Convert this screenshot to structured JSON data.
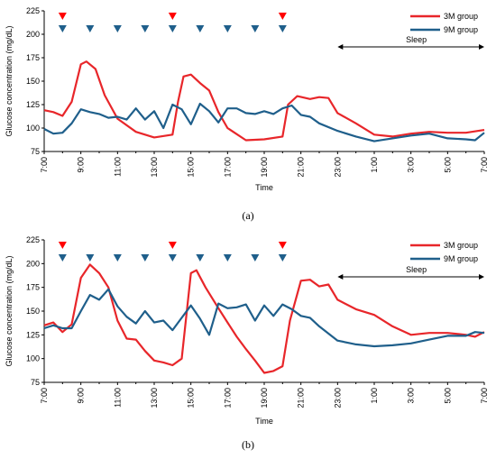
{
  "chart_data": [
    {
      "type": "line",
      "panel_label": "(a)",
      "xlabel": "Time",
      "ylabel": "Glucose concentration (mg/dL)",
      "ylim": [
        75,
        225
      ],
      "ytick_labels": [
        "75",
        "100",
        "125",
        "150",
        "175",
        "200",
        "225"
      ],
      "xtick_labels": [
        "7:00",
        "9:00",
        "11:00",
        "13:00",
        "15:00",
        "17:00",
        "19:00",
        "21:00",
        "23:00",
        "1:00",
        "3:00",
        "5:00",
        "7:00"
      ],
      "grid": false,
      "legend_position": "top-right",
      "sleep": {
        "label": "Sleep",
        "start_hour": 23,
        "end_hour": 31
      },
      "meal_markers": {
        "3M group": {
          "hours": [
            8,
            14,
            20
          ],
          "color": "#ff0000"
        },
        "9M group": {
          "hours": [
            8,
            9.5,
            11,
            12.5,
            14,
            15.5,
            17,
            18.5,
            20
          ],
          "color": "#1f5f8b"
        }
      },
      "series": [
        {
          "name": "3M group",
          "color": "#e8262a",
          "points": [
            [
              7,
              119
            ],
            [
              7.5,
              117
            ],
            [
              8,
              113
            ],
            [
              8.5,
              128
            ],
            [
              9,
              168
            ],
            [
              9.3,
              171
            ],
            [
              9.8,
              163
            ],
            [
              10.3,
              135
            ],
            [
              11,
              110
            ],
            [
              12,
              96
            ],
            [
              13,
              90
            ],
            [
              14,
              93
            ],
            [
              14.3,
              128
            ],
            [
              14.6,
              155
            ],
            [
              15,
              157
            ],
            [
              15.5,
              148
            ],
            [
              16,
              140
            ],
            [
              16.5,
              117
            ],
            [
              17,
              100
            ],
            [
              18,
              87
            ],
            [
              19,
              88
            ],
            [
              20,
              91
            ],
            [
              20.3,
              125
            ],
            [
              20.8,
              134
            ],
            [
              21.5,
              131
            ],
            [
              22,
              133
            ],
            [
              22.5,
              132
            ],
            [
              23,
              116
            ],
            [
              24,
              105
            ],
            [
              25,
              93
            ],
            [
              26,
              91
            ],
            [
              27,
              94
            ],
            [
              28,
              96
            ],
            [
              29,
              95
            ],
            [
              30,
              95
            ],
            [
              31,
              98
            ]
          ]
        },
        {
          "name": "9M group",
          "color": "#1f5f8b",
          "points": [
            [
              7,
              99
            ],
            [
              7.5,
              94
            ],
            [
              8,
              95
            ],
            [
              8.5,
              105
            ],
            [
              9,
              120
            ],
            [
              9.5,
              117
            ],
            [
              10,
              115
            ],
            [
              10.5,
              111
            ],
            [
              11,
              112
            ],
            [
              11.5,
              109
            ],
            [
              12,
              121
            ],
            [
              12.5,
              109
            ],
            [
              13,
              118
            ],
            [
              13.5,
              100
            ],
            [
              14,
              125
            ],
            [
              14.5,
              120
            ],
            [
              15,
              104
            ],
            [
              15.5,
              126
            ],
            [
              16,
              118
            ],
            [
              16.5,
              106
            ],
            [
              17,
              121
            ],
            [
              17.5,
              121
            ],
            [
              18,
              116
            ],
            [
              18.5,
              115
            ],
            [
              19,
              118
            ],
            [
              19.5,
              115
            ],
            [
              20,
              121
            ],
            [
              20.5,
              124
            ],
            [
              21,
              114
            ],
            [
              21.5,
              112
            ],
            [
              22,
              105
            ],
            [
              23,
              97
            ],
            [
              24,
              91
            ],
            [
              25,
              86
            ],
            [
              26,
              89
            ],
            [
              27,
              92
            ],
            [
              28,
              94
            ],
            [
              29,
              89
            ],
            [
              30,
              88
            ],
            [
              30.5,
              87
            ],
            [
              31,
              95
            ]
          ]
        }
      ]
    },
    {
      "type": "line",
      "panel_label": "(b)",
      "xlabel": "Time",
      "ylabel": "Glucose concentration (mg/dL)",
      "ylim": [
        75,
        225
      ],
      "ytick_labels": [
        "75",
        "100",
        "125",
        "150",
        "175",
        "200",
        "225"
      ],
      "xtick_labels": [
        "7:00",
        "9:00",
        "11:00",
        "13:00",
        "15:00",
        "17:00",
        "19:00",
        "21:00",
        "23:00",
        "1:00",
        "3:00",
        "5:00",
        "7:00"
      ],
      "grid": false,
      "legend_position": "top-right",
      "sleep": {
        "label": "Sleep",
        "start_hour": 23,
        "end_hour": 31
      },
      "meal_markers": {
        "3M group": {
          "hours": [
            8,
            14,
            20
          ],
          "color": "#ff0000"
        },
        "9M group": {
          "hours": [
            8,
            9.5,
            11,
            12.5,
            14,
            15.5,
            17,
            18.5,
            20
          ],
          "color": "#1f5f8b"
        }
      },
      "series": [
        {
          "name": "3M group",
          "color": "#e8262a",
          "points": [
            [
              7,
              135
            ],
            [
              7.5,
              138
            ],
            [
              8,
              128
            ],
            [
              8.5,
              136
            ],
            [
              9,
              185
            ],
            [
              9.5,
              199
            ],
            [
              10,
              190
            ],
            [
              10.5,
              175
            ],
            [
              11,
              140
            ],
            [
              11.5,
              121
            ],
            [
              12,
              120
            ],
            [
              12.5,
              108
            ],
            [
              13,
              98
            ],
            [
              13.5,
              96
            ],
            [
              14,
              93
            ],
            [
              14.5,
              100
            ],
            [
              15,
              190
            ],
            [
              15.3,
              193
            ],
            [
              15.8,
              175
            ],
            [
              16.5,
              153
            ],
            [
              17,
              138
            ],
            [
              17.5,
              123
            ],
            [
              18,
              110
            ],
            [
              18.5,
              98
            ],
            [
              19,
              85
            ],
            [
              19.5,
              87
            ],
            [
              20,
              92
            ],
            [
              20.4,
              140
            ],
            [
              21,
              182
            ],
            [
              21.5,
              183
            ],
            [
              22,
              176
            ],
            [
              22.5,
              178
            ],
            [
              23,
              162
            ],
            [
              24,
              152
            ],
            [
              25,
              146
            ],
            [
              26,
              134
            ],
            [
              27,
              125
            ],
            [
              28,
              127
            ],
            [
              29,
              127
            ],
            [
              30,
              125
            ],
            [
              30.5,
              123
            ],
            [
              31,
              128
            ]
          ]
        },
        {
          "name": "9M group",
          "color": "#1f5f8b",
          "points": [
            [
              7,
              132
            ],
            [
              7.5,
              135
            ],
            [
              8,
              132
            ],
            [
              8.5,
              132
            ],
            [
              9,
              150
            ],
            [
              9.5,
              167
            ],
            [
              10,
              162
            ],
            [
              10.5,
              173
            ],
            [
              11,
              155
            ],
            [
              11.5,
              144
            ],
            [
              12,
              137
            ],
            [
              12.5,
              150
            ],
            [
              13,
              138
            ],
            [
              13.5,
              140
            ],
            [
              14,
              130
            ],
            [
              14.5,
              143
            ],
            [
              15,
              156
            ],
            [
              15.5,
              142
            ],
            [
              16,
              125
            ],
            [
              16.5,
              158
            ],
            [
              17,
              153
            ],
            [
              17.5,
              154
            ],
            [
              18,
              157
            ],
            [
              18.5,
              140
            ],
            [
              19,
              156
            ],
            [
              19.5,
              145
            ],
            [
              20,
              157
            ],
            [
              20.5,
              152
            ],
            [
              21,
              145
            ],
            [
              21.5,
              143
            ],
            [
              22,
              134
            ],
            [
              23,
              119
            ],
            [
              24,
              115
            ],
            [
              25,
              113
            ],
            [
              26,
              114
            ],
            [
              27,
              116
            ],
            [
              28,
              120
            ],
            [
              29,
              124
            ],
            [
              30,
              124
            ],
            [
              30.5,
              128
            ],
            [
              31,
              127
            ]
          ]
        }
      ]
    }
  ]
}
